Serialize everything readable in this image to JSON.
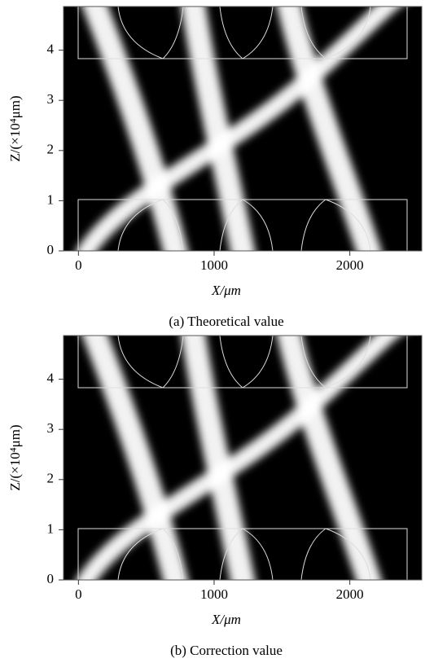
{
  "chart_data": [
    {
      "type": "image",
      "caption": "(a) Theoretical value",
      "xlabel": "X/μm",
      "ylabel": "Z/(×10⁴μm)",
      "xlim": [
        -110,
        2530
      ],
      "ylim": [
        0,
        4.87
      ],
      "xticks": [
        0,
        1000,
        2000
      ],
      "yticks": [
        0,
        1,
        2,
        3,
        4
      ],
      "grid": false
    },
    {
      "type": "image",
      "caption": "(b) Correction value",
      "xlabel": "X/μm",
      "ylabel": "Z/(×10⁴μm)",
      "xlim": [
        -110,
        2530
      ],
      "ylim": [
        0,
        4.87
      ],
      "xticks": [
        0,
        1000,
        2000
      ],
      "yticks": [
        0,
        1,
        2,
        3,
        4
      ],
      "grid": false
    }
  ]
}
